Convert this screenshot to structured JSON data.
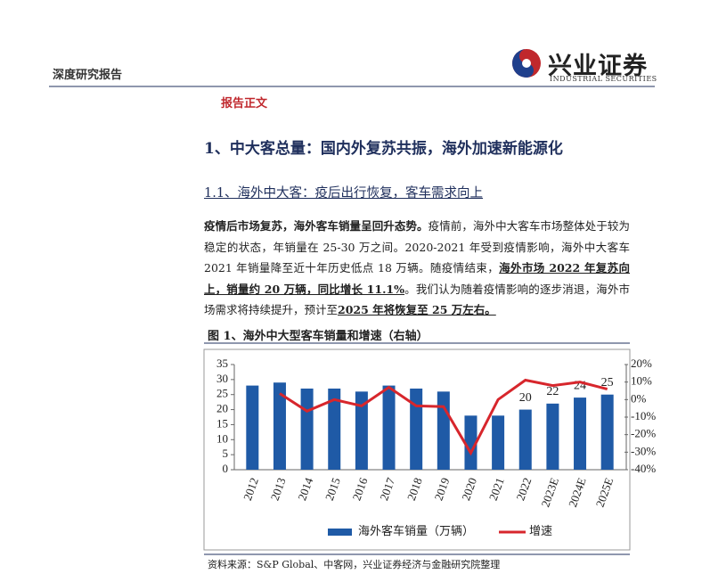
{
  "header": {
    "title": "深度研究报告",
    "logo_name": "兴业证券",
    "logo_subtitle": "INDUSTRIAL SECURITIES"
  },
  "section_tag": "报告正文",
  "heading": "1、中大客总量：国内外复苏共振，海外加速新能源化",
  "subheading": "1.1、海外中大客：疫后出行恢复，客车需求向上",
  "paragraph": [
    {
      "text": "疫情后市场复苏，海外客车销量呈回升态势。",
      "style": "bold"
    },
    {
      "text": "疫情前，海外中大客车市场整体处于较为稳定的状态，年销量在 25-30 万之间。2020-2021 年受到疫情影响，海外中大客车 2021 年销量降至近十年历史低点 18 万辆。随疫情结束，",
      "style": "normal"
    },
    {
      "text": "海外市场 2022 年复苏向上，销量约 20 万辆，同比增长 11.1%",
      "style": "bold-underline"
    },
    {
      "text": "。我们认为随着疫情影响的逐步消退，海外市场需求将持续提升，预计至",
      "style": "normal"
    },
    {
      "text": "2025 年将恢复至 25 万左右。",
      "style": "bold-underline"
    }
  ],
  "figure_caption": "图 1、海外中大型客车销量和增速（右轴）",
  "source": "资料来源：S&P Global、中客网，兴业证券经济与金融研究院整理",
  "chart_data": {
    "type": "bar",
    "categories": [
      "2012",
      "2013",
      "2014",
      "2015",
      "2016",
      "2017",
      "2018",
      "2019",
      "2020",
      "2021",
      "2022",
      "2023E",
      "2024E",
      "2025E"
    ],
    "series": [
      {
        "name": "海外客车销量（万辆）",
        "color": "#1f5aa6",
        "values": [
          28,
          29,
          27,
          27,
          26,
          28,
          27,
          26,
          18,
          18,
          20,
          22,
          24,
          25
        ],
        "show_labels": [
          false,
          false,
          false,
          false,
          false,
          false,
          false,
          false,
          false,
          false,
          true,
          true,
          true,
          true
        ]
      },
      {
        "name": "增速",
        "type": "line",
        "axis": "y2",
        "color": "#d7262c",
        "values": [
          null,
          3.5,
          -6.6,
          0,
          -3.6,
          7,
          -3.6,
          -4,
          -30.5,
          0,
          11.1,
          8,
          10,
          6
        ]
      }
    ],
    "ylim": [
      0,
      35
    ],
    "yticks": [
      0,
      5,
      10,
      15,
      20,
      25,
      30,
      35
    ],
    "y2lim": [
      -40,
      20
    ],
    "y2ticks": [
      {
        "value": -40,
        "label": "-40%"
      },
      {
        "value": -30,
        "label": "-30%"
      },
      {
        "value": -20,
        "label": "-20%"
      },
      {
        "value": -10,
        "label": "-10%"
      },
      {
        "value": 0,
        "label": "0%"
      },
      {
        "value": 10,
        "label": "10%"
      },
      {
        "value": 20,
        "label": "20%"
      }
    ]
  }
}
